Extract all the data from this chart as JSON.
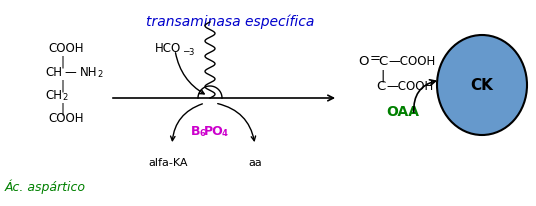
{
  "bg_color": "#ffffff",
  "title_text": "transaminasa específica",
  "title_color": "#0000cc",
  "title_fontsize": 10,
  "ac_aspartico_text": "Ác. aspártico",
  "ac_aspartico_color": "#008000",
  "ac_aspartico_fontsize": 9,
  "b6po4_color": "#cc00cc",
  "b6po4_fontsize": 9,
  "alfaka_fontsize": 8,
  "aa_fontsize": 8,
  "oaa_text": "OAA",
  "oaa_color": "#008000",
  "oaa_fontsize": 10,
  "ck_circle_color": "#6699cc",
  "ck_text": "CK",
  "ck_fontsize": 11,
  "main_fs": 8.5
}
